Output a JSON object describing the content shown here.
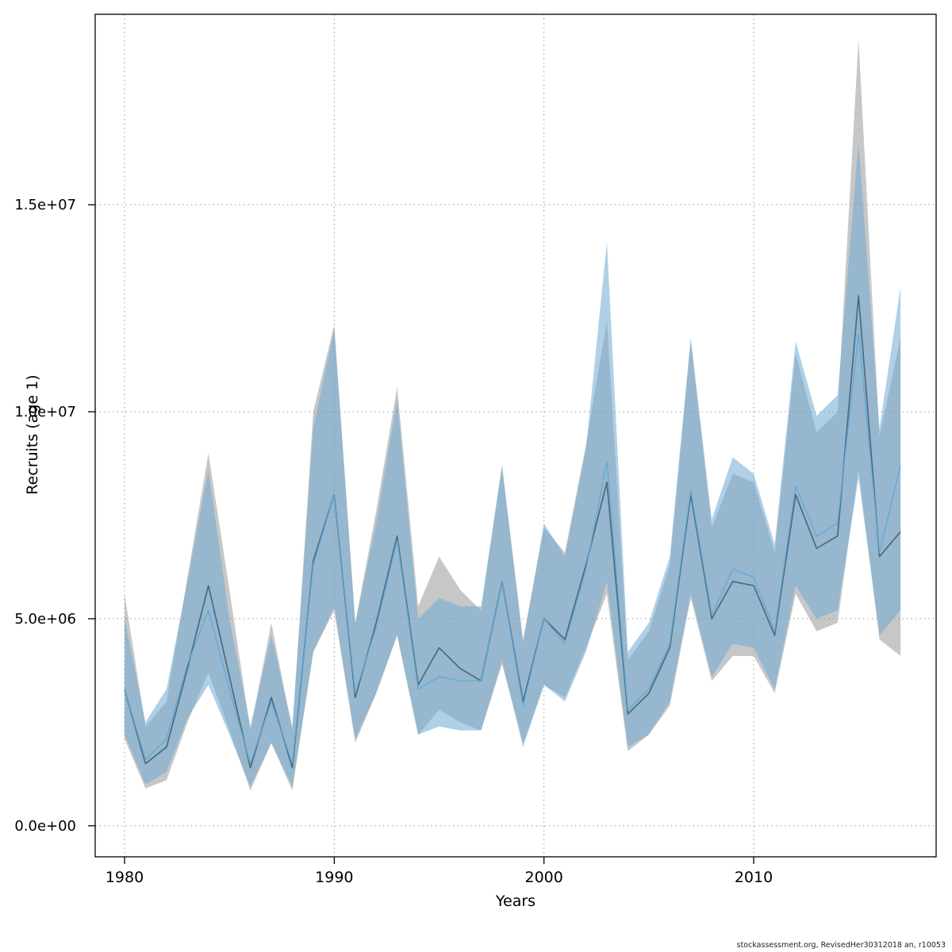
{
  "chart_data": {
    "type": "line",
    "title": "",
    "xlabel": "Years",
    "ylabel": "Recruits (age 1)",
    "watermark": "stockassessment.org, RevisedHer30312018 an, r10053",
    "grid": "dotted",
    "grid_color": "#999999",
    "axis_color": "#000000",
    "background": "#ffffff",
    "xlim": [
      1978.6,
      2018.7
    ],
    "ylim": [
      -750000,
      19600000
    ],
    "x_ticks": [
      1980,
      1990,
      2000,
      2010
    ],
    "x_tick_labels": [
      "1980",
      "1990",
      "2000",
      "2010"
    ],
    "y_ticks": [
      0,
      5000000,
      10000000,
      15000000
    ],
    "y_tick_labels": [
      "0.0e+00",
      "5.0e+06",
      "1.0e+07",
      "1.5e+07"
    ],
    "x": [
      1980,
      1981,
      1982,
      1983,
      1984,
      1985,
      1986,
      1987,
      1988,
      1989,
      1990,
      1991,
      1992,
      1993,
      1994,
      1995,
      1996,
      1997,
      1998,
      1999,
      2000,
      2001,
      2002,
      2003,
      2004,
      2005,
      2006,
      2007,
      2008,
      2009,
      2010,
      2011,
      2012,
      2013,
      2014,
      2015,
      2016,
      2017
    ],
    "series": [
      {
        "name": "grey-ci-run",
        "line_color": "#4d6b7c",
        "line_width": 1.7,
        "band_color": "rgba(130,130,130,0.45)",
        "values": [
          3300000.0,
          1500000.0,
          1900000.0,
          3800000.0,
          5800000.0,
          3600000.0,
          1400000.0,
          3100000.0,
          1400000.0,
          6400000.0,
          8000000.0,
          3100000.0,
          4900000.0,
          7000000.0,
          3400000.0,
          4300000.0,
          3800000.0,
          3500000.0,
          5900000.0,
          3000000.0,
          5000000.0,
          4500000.0,
          6300000.0,
          8300000.0,
          2700000.0,
          3200000.0,
          4300000.0,
          8000000.0,
          5000000.0,
          5900000.0,
          5800000.0,
          4600000.0,
          8000000.0,
          6700000.0,
          7000000.0,
          12800000.0,
          6500000.0,
          7100000.0
        ],
        "lower": [
          2100000.0,
          900000.0,
          1100000.0,
          2500000.0,
          3700000.0,
          2300000.0,
          850000.0,
          2000000.0,
          850000.0,
          4200000.0,
          5200000.0,
          2000000.0,
          3200000.0,
          4600000.0,
          2200000.0,
          2800000.0,
          2500000.0,
          2300000.0,
          3900000.0,
          2000000.0,
          3400000.0,
          3100000.0,
          4300000.0,
          5600000.0,
          1800000.0,
          2200000.0,
          2900000.0,
          5500000.0,
          3500000.0,
          4100000.0,
          4100000.0,
          3200000.0,
          5600000.0,
          4700000.0,
          4900000.0,
          8600000.0,
          4500000.0,
          4100000.0
        ],
        "upper": [
          5600000.0,
          2400000.0,
          3000000.0,
          6000000.0,
          9000000.0,
          5700000.0,
          2300000.0,
          4900000.0,
          2300000.0,
          10000000.0,
          12100000.0,
          4900000.0,
          7600000.0,
          10600000.0,
          5300000.0,
          6500000.0,
          5700000.0,
          5200000.0,
          8700000.0,
          4500000.0,
          7200000.0,
          6600000.0,
          9200000.0,
          12200000.0,
          4000000.0,
          4700000.0,
          6300000.0,
          11700000.0,
          7200000.0,
          8500000.0,
          8300000.0,
          6600000.0,
          11400000.0,
          9500000.0,
          10000000.0,
          19000000.0,
          9400000.0,
          11800000.0
        ]
      },
      {
        "name": "blue-ci-run",
        "line_color": "#5ea8dc",
        "line_width": 1.2,
        "band_color": "rgba(110,170,210,0.55)",
        "values": [
          3300000.0,
          1600000.0,
          2100000.0,
          3900000.0,
          5200000.0,
          3300000.0,
          1500000.0,
          3000000.0,
          1500000.0,
          6300000.0,
          8000000.0,
          3200000.0,
          4800000.0,
          6900000.0,
          3300000.0,
          3600000.0,
          3500000.0,
          3500000.0,
          5900000.0,
          2900000.0,
          5000000.0,
          4400000.0,
          6200000.0,
          8800000.0,
          2800000.0,
          3300000.0,
          4400000.0,
          8100000.0,
          5100000.0,
          6200000.0,
          6000000.0,
          4700000.0,
          8200000.0,
          7000000.0,
          7300000.0,
          11900000.0,
          6600000.0,
          8700000.0
        ],
        "lower": [
          2200000.0,
          1000000.0,
          1300000.0,
          2600000.0,
          3400000.0,
          2200000.0,
          950000.0,
          2000000.0,
          950000.0,
          4200000.0,
          5300000.0,
          2100000.0,
          3200000.0,
          4600000.0,
          2200000.0,
          2400000.0,
          2300000.0,
          2300000.0,
          4000000.0,
          1900000.0,
          3400000.0,
          3000000.0,
          4200000.0,
          5900000.0,
          1900000.0,
          2200000.0,
          3000000.0,
          5600000.0,
          3600000.0,
          4400000.0,
          4300000.0,
          3300000.0,
          5800000.0,
          5000000.0,
          5200000.0,
          8400000.0,
          4600000.0,
          5200000.0
        ],
        "upper": [
          5000000.0,
          2500000.0,
          3300000.0,
          5900000.0,
          8600000.0,
          5000000.0,
          2400000.0,
          4600000.0,
          2400000.0,
          9600000.0,
          12000000.0,
          4900000.0,
          7300000.0,
          10300000.0,
          5000000.0,
          5500000.0,
          5300000.0,
          5300000.0,
          8700000.0,
          4400000.0,
          7300000.0,
          6500000.0,
          9100000.0,
          14100000.0,
          4200000.0,
          4900000.0,
          6500000.0,
          11800000.0,
          7400000.0,
          8900000.0,
          8500000.0,
          6800000.0,
          11700000.0,
          9900000.0,
          10400000.0,
          16500000.0,
          9600000.0,
          13000000.0
        ]
      }
    ]
  }
}
